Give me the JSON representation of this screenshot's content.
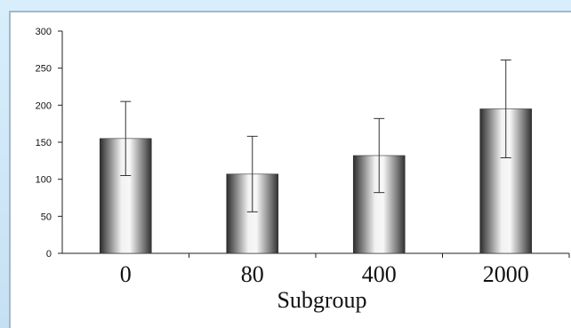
{
  "chart_data": {
    "type": "bar",
    "categories": [
      "0",
      "80",
      "400",
      "2000"
    ],
    "values": [
      155,
      107,
      132,
      195
    ],
    "error": [
      50,
      51,
      50,
      66
    ],
    "title": "",
    "xlabel": "Subgroup",
    "ylabel": "",
    "ylim": [
      0,
      300
    ],
    "yticks": [
      0,
      50,
      100,
      150,
      200,
      250,
      300
    ],
    "grid": false,
    "bar_style": "gray-cylinder-gradient"
  }
}
